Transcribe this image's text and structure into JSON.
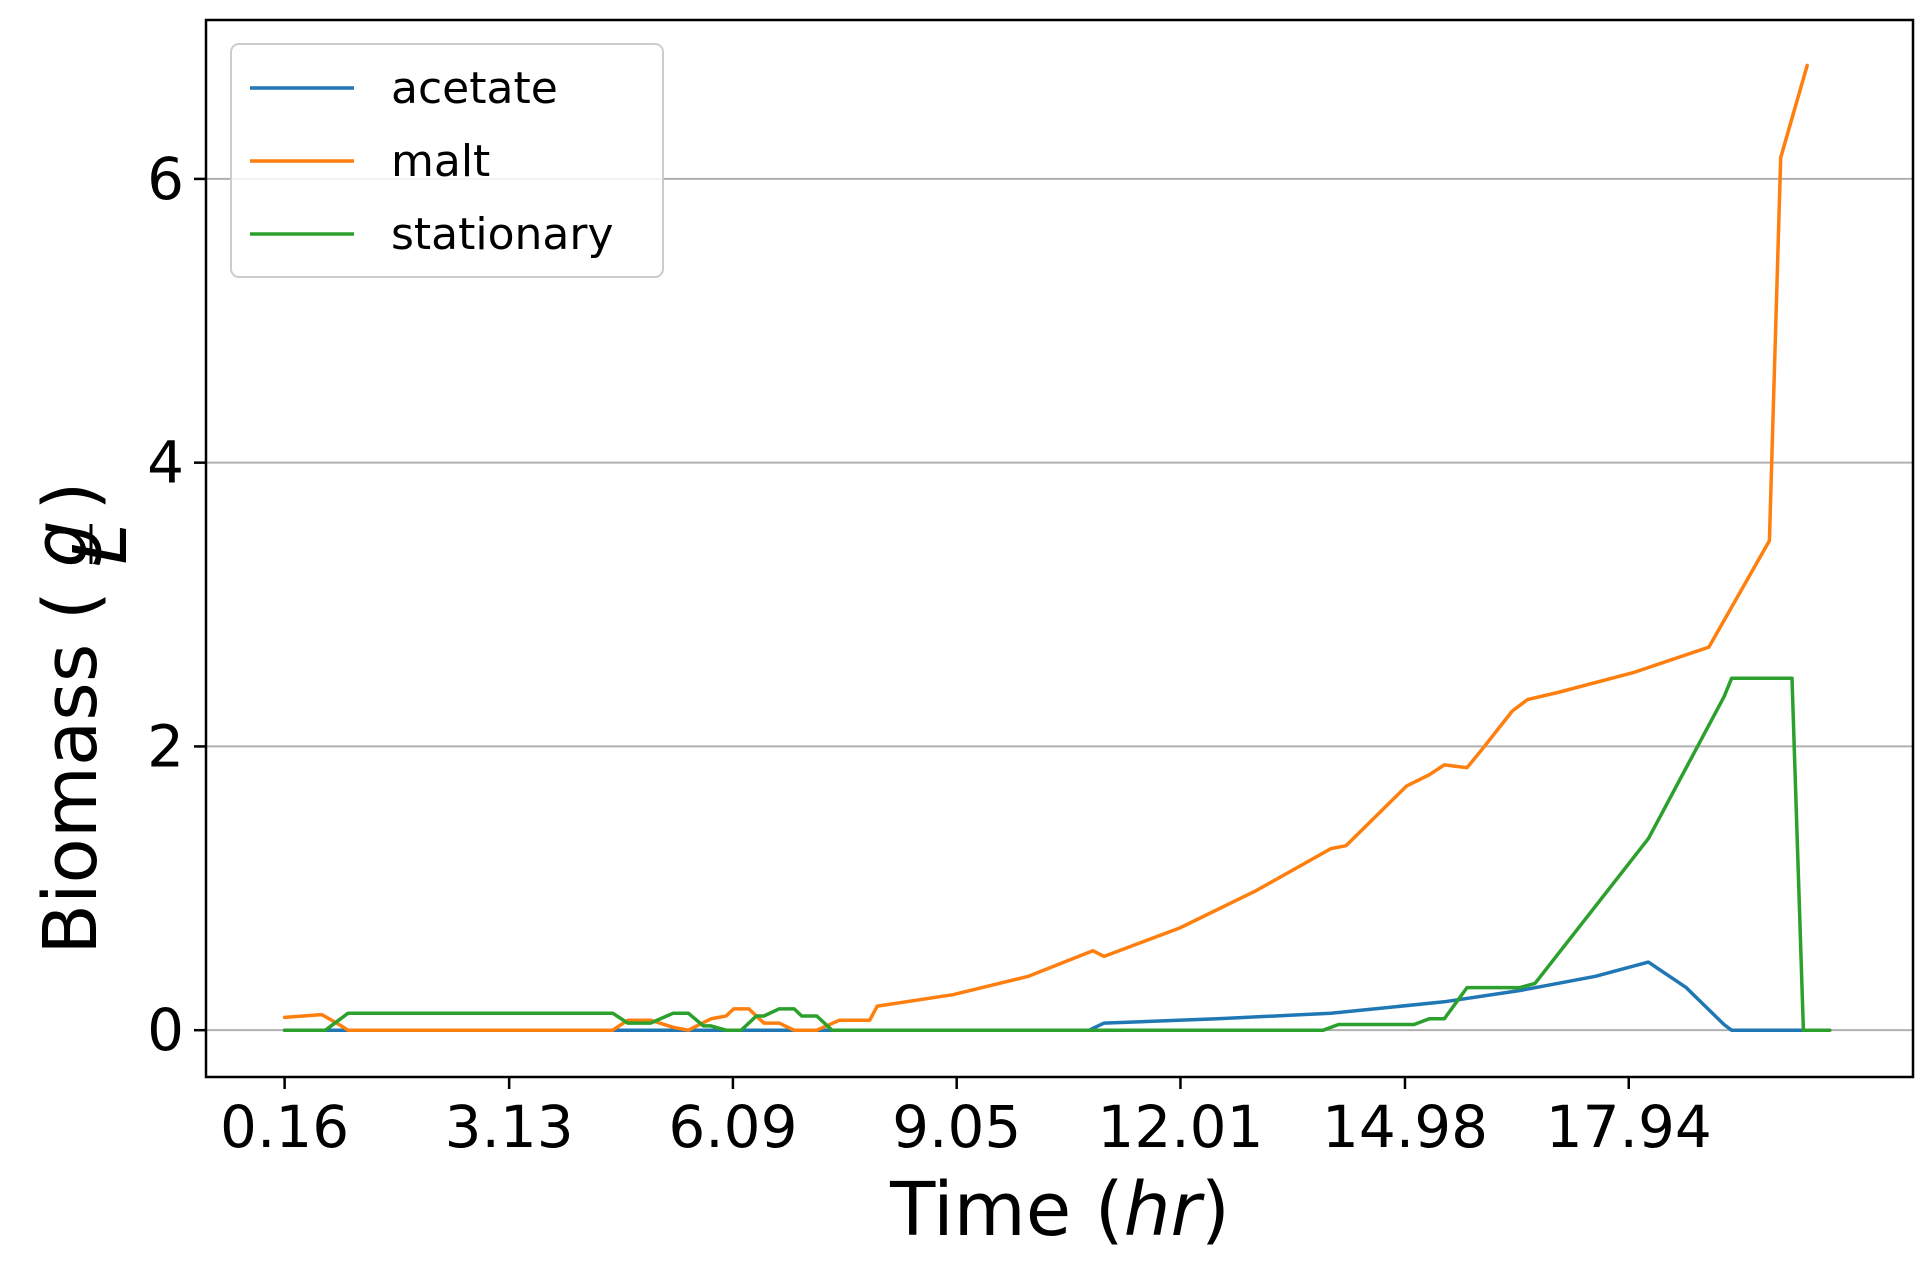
{
  "chart_data": {
    "type": "line",
    "xlabel_text": "Time (",
    "xlabel_italic": "hr",
    "xlabel_close": ")",
    "ylabel_text": "Biomass (",
    "ylabel_frac_num": "g",
    "ylabel_frac_den": "L",
    "ylabel_close": ")",
    "x_ticks": [
      0.16,
      3.13,
      6.09,
      9.05,
      12.01,
      14.98,
      17.94
    ],
    "x_tick_labels": [
      "0.16",
      "3.13",
      "6.09",
      "9.05",
      "12.01",
      "14.98",
      "17.94"
    ],
    "y_ticks": [
      0,
      2,
      4,
      6
    ],
    "y_tick_labels": [
      "0",
      "2",
      "4",
      "6"
    ],
    "xlim": [
      -0.88,
      21.7
    ],
    "ylim": [
      -0.33,
      7.12
    ],
    "grid": "y",
    "legend_position": "top-left",
    "series": [
      {
        "name": "acetate",
        "color": "#1f77b4",
        "points": [
          [
            0.16,
            0
          ],
          [
            10.8,
            0
          ],
          [
            11.0,
            0.05
          ],
          [
            12.5,
            0.08
          ],
          [
            14.0,
            0.12
          ],
          [
            15.5,
            0.2
          ],
          [
            16.5,
            0.28
          ],
          [
            17.5,
            0.38
          ],
          [
            18.2,
            0.48
          ],
          [
            18.7,
            0.3
          ],
          [
            19.2,
            0.04
          ],
          [
            19.3,
            0.0
          ],
          [
            20.3,
            0.0
          ]
        ]
      },
      {
        "name": "malt",
        "color": "#ff7f0e",
        "points": [
          [
            0.16,
            0.09
          ],
          [
            0.65,
            0.11
          ],
          [
            0.85,
            0.05
          ],
          [
            1.0,
            0.0
          ],
          [
            4.5,
            0.0
          ],
          [
            4.7,
            0.07
          ],
          [
            5.0,
            0.07
          ],
          [
            5.3,
            0.02
          ],
          [
            5.5,
            0.0
          ],
          [
            5.8,
            0.08
          ],
          [
            6.0,
            0.1
          ],
          [
            6.1,
            0.15
          ],
          [
            6.3,
            0.15
          ],
          [
            6.5,
            0.05
          ],
          [
            6.7,
            0.05
          ],
          [
            6.9,
            0.0
          ],
          [
            7.2,
            0.0
          ],
          [
            7.5,
            0.07
          ],
          [
            7.9,
            0.07
          ],
          [
            8.0,
            0.17
          ],
          [
            9.0,
            0.25
          ],
          [
            10.0,
            0.38
          ],
          [
            10.85,
            0.56
          ],
          [
            11.0,
            0.52
          ],
          [
            12.0,
            0.72
          ],
          [
            13.0,
            0.98
          ],
          [
            14.0,
            1.28
          ],
          [
            14.2,
            1.3
          ],
          [
            15.0,
            1.72
          ],
          [
            15.3,
            1.8
          ],
          [
            15.5,
            1.87
          ],
          [
            15.8,
            1.85
          ],
          [
            16.0,
            1.98
          ],
          [
            16.4,
            2.25
          ],
          [
            16.6,
            2.33
          ],
          [
            17.0,
            2.38
          ],
          [
            18.0,
            2.52
          ],
          [
            19.0,
            2.7
          ],
          [
            19.8,
            3.45
          ],
          [
            19.95,
            6.15
          ],
          [
            20.3,
            6.8
          ]
        ]
      },
      {
        "name": "stationary",
        "color": "#2ca02c",
        "points": [
          [
            0.16,
            0
          ],
          [
            0.7,
            0
          ],
          [
            1.0,
            0.12
          ],
          [
            3.5,
            0.12
          ],
          [
            4.5,
            0.12
          ],
          [
            4.7,
            0.05
          ],
          [
            5.0,
            0.05
          ],
          [
            5.3,
            0.12
          ],
          [
            5.5,
            0.12
          ],
          [
            5.7,
            0.03
          ],
          [
            5.8,
            0.03
          ],
          [
            6.0,
            0.0
          ],
          [
            6.2,
            0.0
          ],
          [
            6.4,
            0.1
          ],
          [
            6.5,
            0.1
          ],
          [
            6.7,
            0.15
          ],
          [
            6.9,
            0.15
          ],
          [
            7.0,
            0.1
          ],
          [
            7.2,
            0.1
          ],
          [
            7.4,
            0.0
          ],
          [
            13.9,
            0.0
          ],
          [
            14.1,
            0.04
          ],
          [
            15.1,
            0.04
          ],
          [
            15.3,
            0.08
          ],
          [
            15.5,
            0.08
          ],
          [
            15.8,
            0.3
          ],
          [
            16.5,
            0.3
          ],
          [
            16.7,
            0.33
          ],
          [
            18.2,
            1.35
          ],
          [
            19.2,
            2.35
          ],
          [
            19.3,
            2.48
          ],
          [
            20.1,
            2.48
          ],
          [
            20.25,
            0.0
          ],
          [
            20.6,
            0.0
          ]
        ]
      }
    ]
  }
}
